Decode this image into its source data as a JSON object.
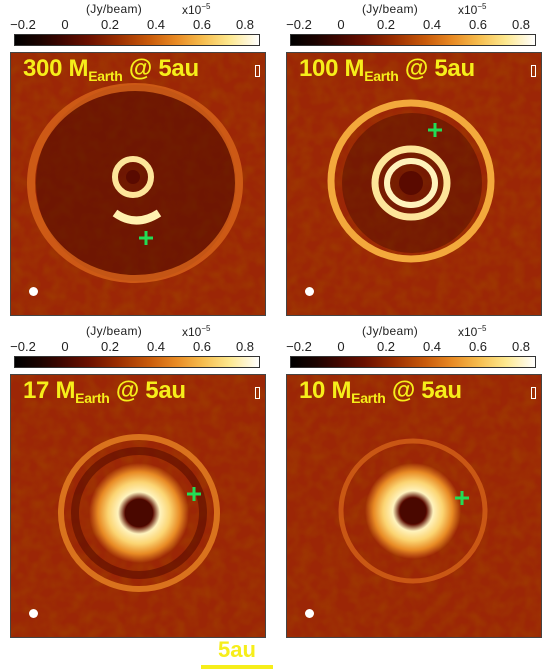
{
  "colorbar": {
    "unit": "(Jy/beam)",
    "multiplier_base": "x10",
    "multiplier_exp": "−5",
    "ticks": [
      "−0.2",
      "0",
      "0.2",
      "0.4",
      "0.6",
      "0.8"
    ]
  },
  "panels": [
    {
      "title_value": "300 M",
      "title_sub": "Earth",
      "title_suffix": " @ 5au",
      "planet_marker": "green-plus",
      "tick_labels": [
        "−0.2",
        "0",
        "0.2",
        "0.4",
        "0.6",
        "0.8"
      ]
    },
    {
      "title_value": "100 M",
      "title_sub": "Earth",
      "title_suffix": " @ 5au",
      "planet_marker": "green-plus",
      "tick_labels": [
        "−0.2",
        "0",
        "0.2",
        "0.4",
        "0.6",
        "0.8"
      ]
    },
    {
      "title_value": "17 M",
      "title_sub": "Earth",
      "title_suffix": " @ 5au",
      "planet_marker": "green-plus",
      "tick_labels": [
        "−0.2",
        "0",
        "0.2",
        "0.4",
        "0.6",
        "0.8"
      ]
    },
    {
      "title_value": "10 M",
      "title_sub": "Earth",
      "title_suffix": " @ 5au",
      "planet_marker": "green-plus",
      "tick_labels": [
        "−0.2",
        "0",
        "0.2",
        "0.4",
        "0.6",
        "0.8"
      ]
    }
  ],
  "scalebar": {
    "label": "5au"
  },
  "colors": {
    "title_text": "#f6ee1a",
    "planet_marker": "#22dd55",
    "beam": "#ffffff"
  }
}
